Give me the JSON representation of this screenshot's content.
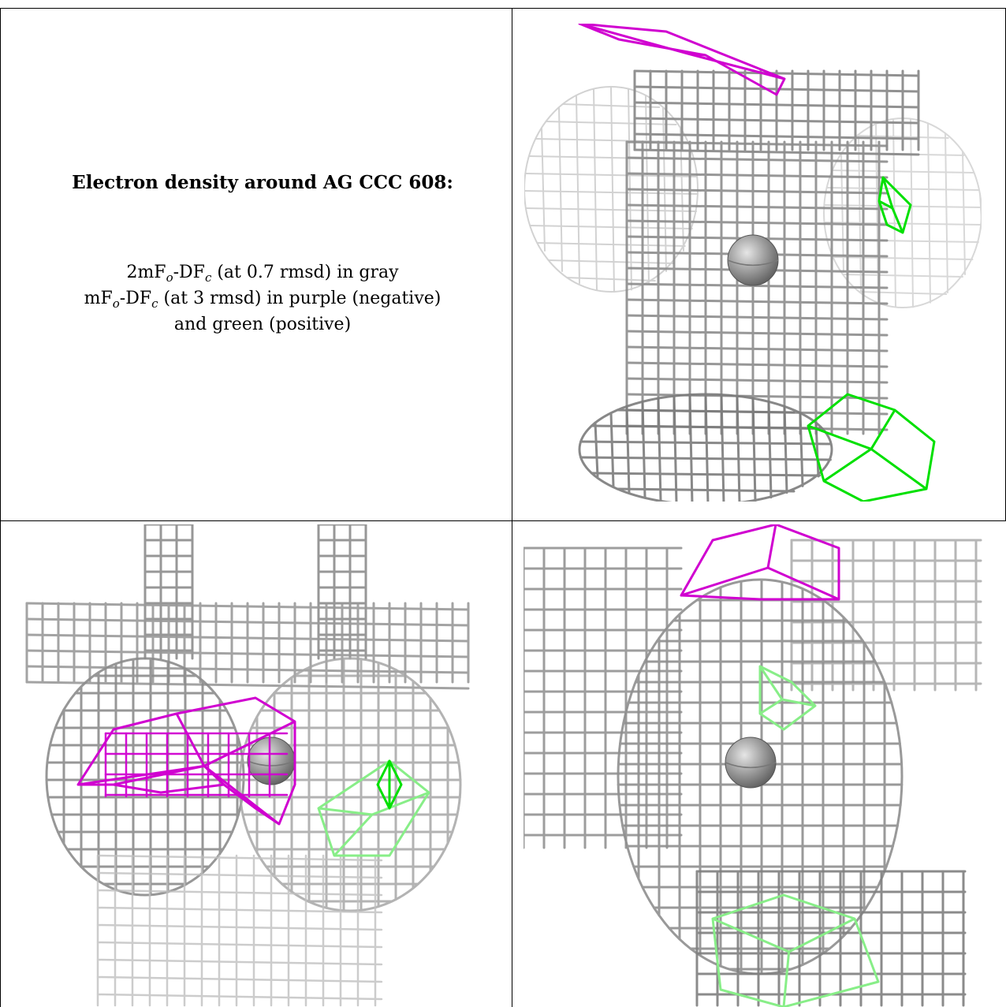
{
  "caption": {
    "title": "Electron density around AG CCC 608:",
    "line1_pre": "2mF",
    "line1_sub1": "o",
    "line1_mid": "-DF",
    "line1_sub2": "c",
    "line1_post": " (at 0.7 rmsd) in gray",
    "line2_pre": "mF",
    "line2_sub1": "o",
    "line2_mid": "-DF",
    "line2_sub2": "c",
    "line2_post": " (at 3 rmsd) in purple (negative)",
    "line3": "and green (positive)"
  },
  "colors": {
    "gray_mesh": "#8c8c8c",
    "purple_mesh": "#d000d0",
    "green_mesh": "#00e000",
    "light_green_mesh": "#88ee88",
    "sphere": "#9a9a9a"
  },
  "panels": [
    {
      "name": "caption-panel"
    },
    {
      "name": "density-view-top-right"
    },
    {
      "name": "density-view-bottom-left"
    },
    {
      "name": "density-view-bottom-right"
    }
  ]
}
